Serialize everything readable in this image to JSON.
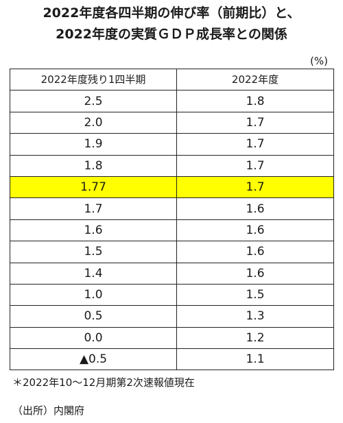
{
  "title": {
    "line1": "2022年度各四半期の伸び率（前期比）と、",
    "line2": "2022年度の実質ＧＤＰ成長率との関係"
  },
  "unit": "(%)",
  "table": {
    "headers": [
      "2022年度残り1四半期",
      "2022年度"
    ],
    "rows": [
      {
        "q": "2.5",
        "fy": "1.8"
      },
      {
        "q": "2.0",
        "fy": "1.7"
      },
      {
        "q": "1.9",
        "fy": "1.7"
      },
      {
        "q": "1.8",
        "fy": "1.7"
      },
      {
        "q": "1.77",
        "fy": "1.7",
        "highlight": true
      },
      {
        "q": "1.7",
        "fy": "1.6"
      },
      {
        "q": "1.6",
        "fy": "1.6"
      },
      {
        "q": "1.5",
        "fy": "1.6"
      },
      {
        "q": "1.4",
        "fy": "1.6"
      },
      {
        "q": "1.0",
        "fy": "1.5"
      },
      {
        "q": "0.5",
        "fy": "1.3"
      },
      {
        "q": "0.0",
        "fy": "1.2"
      },
      {
        "q": "▲0.5",
        "fy": "1.1"
      }
    ]
  },
  "highlight_color": "#ffff00",
  "notes": {
    "note1": "＊2022年10～12月期第2次速報値現在",
    "source": "（出所）内閣府"
  }
}
